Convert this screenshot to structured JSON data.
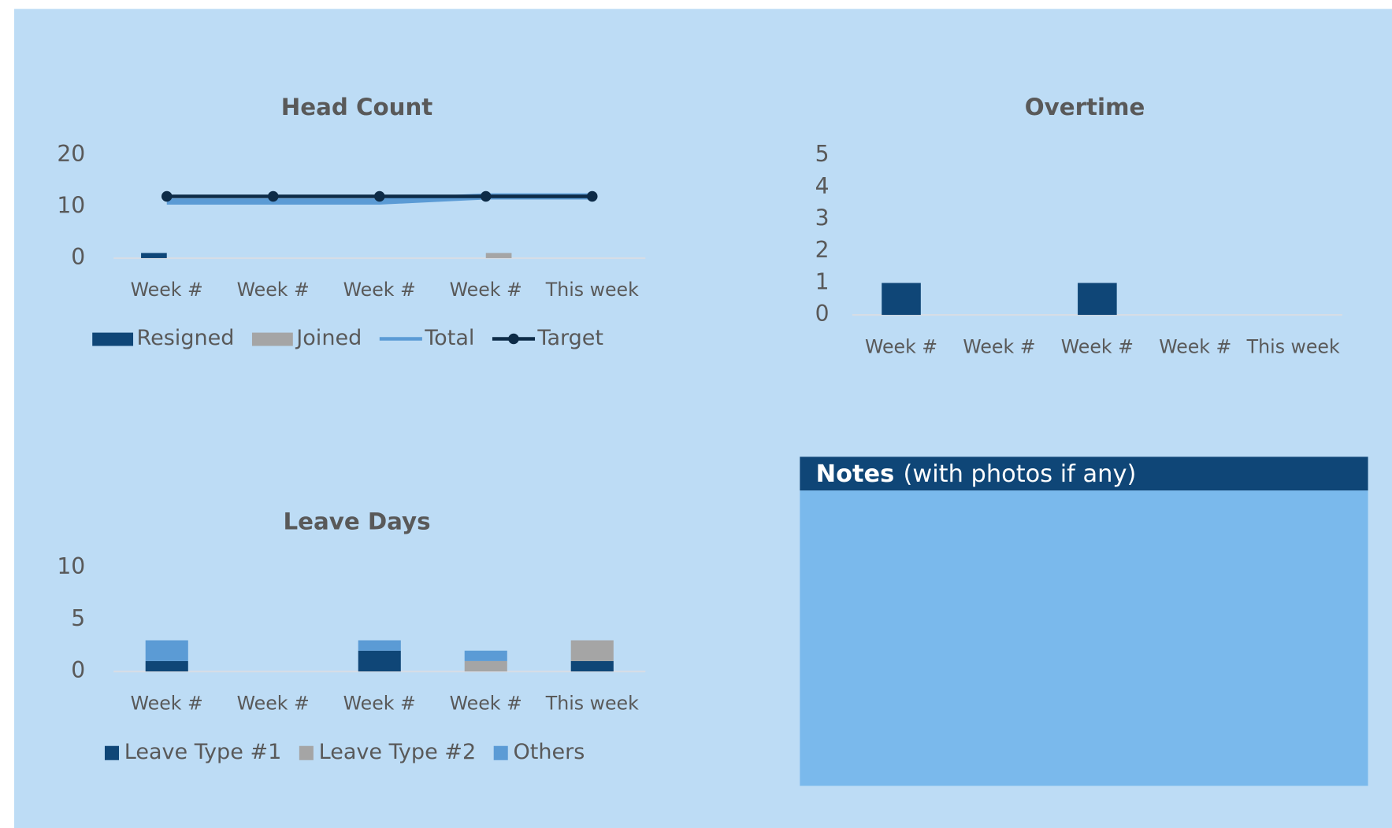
{
  "chart_data": [
    {
      "type": "combo",
      "title": "Head Count",
      "categories": [
        "Week #",
        "Week #",
        "Week #",
        "Week #",
        "This week"
      ],
      "ylim": [
        0,
        20
      ],
      "yticks": [
        0,
        10,
        20
      ],
      "grid": false,
      "series": [
        {
          "name": "Resigned",
          "type": "bar",
          "color": "#0f4677",
          "values": [
            1,
            0,
            0,
            0,
            0
          ]
        },
        {
          "name": "Joined",
          "type": "bar",
          "color": "#a5a5a5",
          "values": [
            0,
            0,
            0,
            1,
            0
          ]
        },
        {
          "name": "Total",
          "type": "line",
          "color": "#5b9bd5",
          "values": [
            11,
            11,
            11,
            12,
            12
          ]
        },
        {
          "name": "Target",
          "type": "line",
          "color": "#0d2b47",
          "marker": true,
          "values": [
            12,
            12,
            12,
            12,
            12
          ]
        }
      ]
    },
    {
      "type": "bar",
      "title": "Overtime",
      "categories": [
        "Week #",
        "Week #",
        "Week #",
        "Week #",
        "This week"
      ],
      "ylim": [
        0,
        5
      ],
      "yticks": [
        0,
        1,
        2,
        3,
        4,
        5
      ],
      "grid": false,
      "series": [
        {
          "color": "#0f4677",
          "values": [
            1,
            0,
            1,
            0,
            0
          ]
        }
      ]
    },
    {
      "type": "stacked",
      "title": "Leave Days",
      "categories": [
        "Week #",
        "Week #",
        "Week #",
        "Week #",
        "This week"
      ],
      "ylim": [
        0,
        10
      ],
      "yticks": [
        0,
        5,
        10
      ],
      "grid": false,
      "series": [
        {
          "name": "Leave Type #1",
          "color": "#0f4677",
          "values": [
            1,
            0,
            2,
            0,
            1
          ]
        },
        {
          "name": "Leave Type #2",
          "color": "#a5a5a5",
          "values": [
            0,
            0,
            0,
            1,
            2
          ]
        },
        {
          "name": "Others",
          "color": "#5b9bd5",
          "values": [
            2,
            0,
            1,
            1,
            0
          ]
        }
      ]
    }
  ],
  "notes": {
    "title": "Notes",
    "subtitle": "(with photos if any)"
  }
}
